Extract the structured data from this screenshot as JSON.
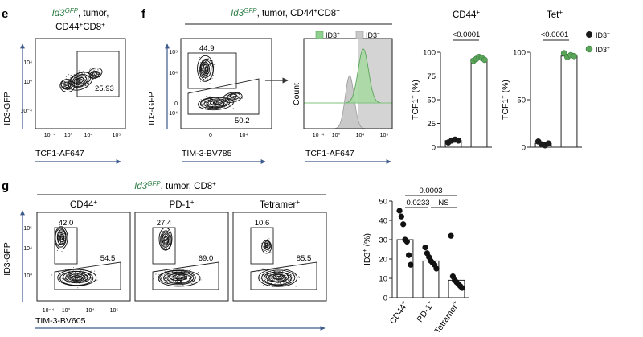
{
  "panels": {
    "e": {
      "letter": "e",
      "title_gfp": "Id3",
      "title_gfp_sup": "GFP",
      "title_line1_rest": ", tumor,",
      "title_line2": "CD44",
      "title_line2_sup": "+",
      "title_line2_b": "CD8",
      "title_line2_b_sup": "+",
      "xlabel": "TCF1-AF647",
      "ylabel": "ID3-GFP",
      "gate_value": "25.93",
      "x_ticks": [
        "10⁻⁴",
        "10⁰",
        "10⁴",
        "10⁵"
      ],
      "y_ticks": [
        "10⁴",
        "10⁰",
        "10⁻⁴"
      ]
    },
    "f": {
      "letter": "f",
      "title_gfp": "Id3",
      "title_gfp_sup": "GFP",
      "title_rest": ", tumor, CD44",
      "title_sup1": "+",
      "title_rest2": "CD8",
      "title_sup2": "+",
      "flow_xlabel": "TIM-3-BV785",
      "flow_ylabel": "ID3-GFP",
      "gate_top": "44.9",
      "gate_bottom": "50.2",
      "flow_x_ticks": [
        "0",
        "10⁴"
      ],
      "flow_y_ticks": [
        "10⁵",
        "10⁴",
        "0",
        "-10⁴"
      ],
      "hist_xlabel": "TCF1-AF647",
      "hist_ylabel": "Count",
      "hist_x_ticks": [
        "10⁻⁴",
        "10⁰",
        "10⁴",
        "10⁵"
      ],
      "hist_legend": [
        {
          "label": "ID3",
          "sup": "+",
          "color": "#8fcf8f"
        },
        {
          "label": "ID3",
          "sup": "−",
          "color": "#c9c9c9"
        }
      ],
      "bar_legend": [
        {
          "label": "ID3",
          "sup": "−",
          "color": "#1a1a1a"
        },
        {
          "label": "ID3",
          "sup": "+",
          "color": "#5aa55a"
        }
      ]
    },
    "g": {
      "letter": "g",
      "title_gfp": "Id3",
      "title_gfp_sup": "GFP",
      "title_rest": ", tumor, CD8",
      "title_sup": "+",
      "xlabel": "TIM-3-BV605",
      "ylabel": "ID3-GFP",
      "x_ticks": [
        "10⁻⁴",
        "10⁰",
        "10⁴",
        "10⁵"
      ],
      "y_ticks": [
        "10⁵",
        "10⁴",
        "10⁰"
      ],
      "subplots": [
        {
          "label": "CD44",
          "sup": "+",
          "top": "42.0",
          "bottom": "54.5"
        },
        {
          "label": "PD-1",
          "sup": "+",
          "top": "27.4",
          "bottom": "69.0"
        },
        {
          "label": "Tetramer",
          "sup": "+",
          "top": "10.6",
          "bottom": "85.5"
        }
      ]
    }
  },
  "chart_data": [
    {
      "type": "bar",
      "title": "CD44",
      "title_sup": "+",
      "ylabel": "TCF1",
      "ylabel_sup": "+",
      "ylabel_unit": " (%)",
      "ylim": [
        0,
        100
      ],
      "y_ticks": [
        0,
        25,
        50,
        75,
        100
      ],
      "pvalue": "<0.0001",
      "series": [
        {
          "name": "ID3−",
          "color": "#1a1a1a",
          "mean": 7,
          "points": [
            5,
            7,
            8,
            7
          ]
        },
        {
          "name": "ID3+",
          "color": "#5aa55a",
          "mean": 93,
          "points": [
            91,
            93,
            95,
            94,
            92
          ]
        }
      ]
    },
    {
      "type": "bar",
      "title": "Tet",
      "title_sup": "+",
      "ylabel": "TCF1",
      "ylabel_sup": "+",
      "ylabel_unit": " (%)",
      "ylim": [
        0,
        100
      ],
      "y_ticks": [
        0,
        50,
        100
      ],
      "pvalue": "<0.0001",
      "series": [
        {
          "name": "ID3−",
          "color": "#1a1a1a",
          "mean": 4,
          "points": [
            6,
            3,
            2,
            4
          ]
        },
        {
          "name": "ID3+",
          "color": "#5aa55a",
          "mean": 96,
          "points": [
            99,
            95,
            97,
            96
          ]
        }
      ]
    },
    {
      "type": "bar",
      "ylabel": "ID3",
      "ylabel_sup": "+",
      "ylabel_unit": " (%)",
      "ylim": [
        0,
        50
      ],
      "y_ticks": [
        0,
        10,
        20,
        30,
        40,
        50
      ],
      "categories": [
        {
          "label": "CD44",
          "sup": "+"
        },
        {
          "label": "PD-1",
          "sup": "+"
        },
        {
          "label": "Tetramer",
          "sup": "+"
        }
      ],
      "series": [
        {
          "mean": 30,
          "points": [
            45,
            42,
            38,
            30,
            29,
            22,
            17
          ]
        },
        {
          "mean": 19,
          "points": [
            26,
            23,
            21,
            19,
            18,
            17,
            15
          ]
        },
        {
          "mean": 9,
          "points": [
            32,
            11,
            9,
            8,
            7,
            6,
            5
          ]
        }
      ],
      "comparisons": [
        {
          "label": "0.0003",
          "from": 0,
          "to": 2
        },
        {
          "label": "0.0233",
          "from": 0,
          "to": 1
        },
        {
          "label": "NS",
          "from": 1,
          "to": 2
        }
      ]
    }
  ]
}
